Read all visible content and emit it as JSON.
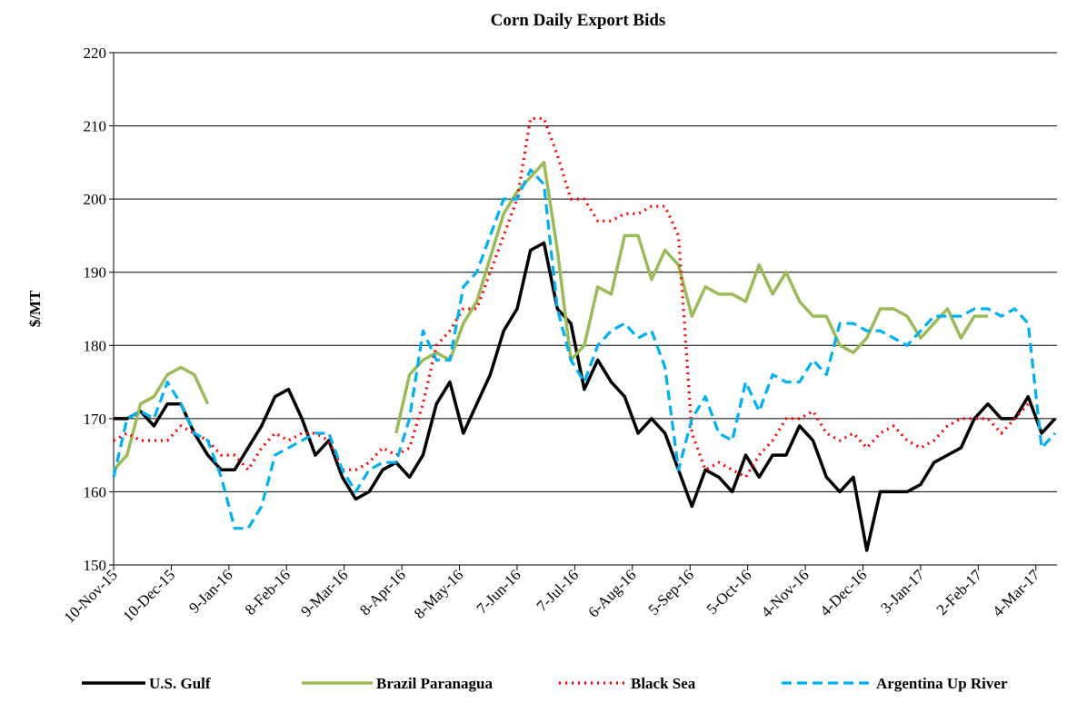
{
  "chart_data": {
    "type": "line",
    "title": "Corn Daily Export Bids",
    "y_label": "$/MT",
    "x": [
      "2015-11-10",
      "2015-11-17",
      "2015-11-24",
      "2015-12-01",
      "2015-12-08",
      "2015-12-15",
      "2015-12-22",
      "2015-12-29",
      "2016-01-05",
      "2016-01-12",
      "2016-01-19",
      "2016-01-26",
      "2016-02-02",
      "2016-02-09",
      "2016-02-16",
      "2016-02-23",
      "2016-03-01",
      "2016-03-08",
      "2016-03-15",
      "2016-03-22",
      "2016-03-29",
      "2016-04-05",
      "2016-04-12",
      "2016-04-19",
      "2016-04-26",
      "2016-05-03",
      "2016-05-10",
      "2016-05-17",
      "2016-05-24",
      "2016-05-31",
      "2016-06-07",
      "2016-06-14",
      "2016-06-21",
      "2016-06-28",
      "2016-07-05",
      "2016-07-12",
      "2016-07-19",
      "2016-07-26",
      "2016-08-02",
      "2016-08-09",
      "2016-08-16",
      "2016-08-23",
      "2016-08-30",
      "2016-09-06",
      "2016-09-13",
      "2016-09-20",
      "2016-09-27",
      "2016-10-04",
      "2016-10-11",
      "2016-10-18",
      "2016-10-25",
      "2016-11-01",
      "2016-11-08",
      "2016-11-15",
      "2016-11-22",
      "2016-11-29",
      "2016-12-06",
      "2016-12-13",
      "2016-12-20",
      "2016-12-27",
      "2017-01-03",
      "2017-01-10",
      "2017-01-17",
      "2017-01-24",
      "2017-01-31",
      "2017-02-07",
      "2017-02-14",
      "2017-02-21",
      "2017-02-28",
      "2017-03-07",
      "2017-03-14"
    ],
    "series": [
      {
        "name": "U.S. Gulf",
        "color": "#000000",
        "dash": "solid",
        "values": [
          170,
          170,
          171,
          169,
          172,
          172,
          168,
          165,
          163,
          163,
          166,
          169,
          173,
          174,
          170,
          165,
          167,
          162,
          159,
          160,
          163,
          164,
          162,
          165,
          172,
          175,
          168,
          172,
          176,
          182,
          185,
          193,
          194,
          185,
          183,
          174,
          178,
          175,
          173,
          168,
          170,
          168,
          163,
          158,
          163,
          162,
          160,
          165,
          162,
          165,
          165,
          169,
          167,
          162,
          160,
          162,
          152,
          160,
          160,
          160,
          161,
          164,
          165,
          166,
          170,
          172,
          170,
          170,
          173,
          168,
          170
        ]
      },
      {
        "name": "Brazil Paranagua",
        "color": "#9bbb59",
        "dash": "solid",
        "values": [
          163,
          165,
          172,
          173,
          176,
          177,
          176,
          172,
          null,
          null,
          null,
          null,
          null,
          null,
          null,
          null,
          null,
          null,
          null,
          null,
          null,
          168,
          176,
          178,
          179,
          178,
          183,
          186,
          192,
          198,
          201,
          203,
          205,
          193,
          178,
          180,
          188,
          187,
          195,
          195,
          189,
          193,
          191,
          184,
          188,
          187,
          187,
          186,
          191,
          187,
          190,
          186,
          184,
          184,
          180,
          179,
          181,
          185,
          185,
          184,
          181,
          183,
          185,
          181,
          184,
          184,
          null,
          null,
          null,
          null,
          null
        ]
      },
      {
        "name": "Black Sea",
        "color": "#ff0000",
        "dash": "dotted",
        "values": [
          167,
          168,
          167,
          167,
          167,
          169,
          168,
          167,
          165,
          165,
          163,
          166,
          168,
          167,
          168,
          168,
          167,
          163,
          163,
          164,
          166,
          165,
          166,
          172,
          180,
          182,
          185,
          185,
          190,
          195,
          200,
          211,
          211,
          206,
          200,
          200,
          197,
          197,
          198,
          198,
          199,
          199,
          195,
          168,
          163,
          164,
          163,
          162,
          165,
          167,
          170,
          170,
          171,
          168,
          167,
          168,
          166,
          168,
          169,
          167,
          166,
          167,
          169,
          170,
          170,
          170,
          168,
          170,
          172,
          null,
          null
        ]
      },
      {
        "name": "Argentina Up River",
        "color": "#00b0f0",
        "dash": "dashed",
        "values": [
          162,
          170,
          171,
          170,
          175,
          172,
          168,
          167,
          162,
          155,
          155,
          158,
          165,
          166,
          167,
          168,
          168,
          163,
          160,
          163,
          164,
          164,
          170,
          182,
          178,
          178,
          188,
          190,
          195,
          200,
          200,
          204,
          202,
          185,
          178,
          175,
          180,
          182,
          183,
          181,
          182,
          177,
          163,
          170,
          173,
          168,
          167,
          175,
          171,
          176,
          175,
          175,
          178,
          176,
          183,
          183,
          182,
          182,
          181,
          180,
          182,
          184,
          184,
          184,
          185,
          185,
          184,
          185,
          183,
          166,
          168
        ]
      }
    ],
    "xlim": [
      "2015-11-10",
      "2017-03-15"
    ],
    "xticks": [
      {
        "value": "2015-11-10",
        "label": "10-Nov-15"
      },
      {
        "value": "2015-12-10",
        "label": "10-Dec-15"
      },
      {
        "value": "2016-01-09",
        "label": "9-Jan-16"
      },
      {
        "value": "2016-02-08",
        "label": "8-Feb-16"
      },
      {
        "value": "2016-03-09",
        "label": "9-Mar-16"
      },
      {
        "value": "2016-04-08",
        "label": "8-Apr-16"
      },
      {
        "value": "2016-05-08",
        "label": "8-May-16"
      },
      {
        "value": "2016-06-07",
        "label": "7-Jun-16"
      },
      {
        "value": "2016-07-07",
        "label": "7-Jul-16"
      },
      {
        "value": "2016-08-06",
        "label": "6-Aug-16"
      },
      {
        "value": "2016-09-05",
        "label": "5-Sep-16"
      },
      {
        "value": "2016-10-05",
        "label": "5-Oct-16"
      },
      {
        "value": "2016-11-04",
        "label": "4-Nov-16"
      },
      {
        "value": "2016-12-04",
        "label": "4-Dec-16"
      },
      {
        "value": "2017-01-03",
        "label": "3-Jan-17"
      },
      {
        "value": "2017-02-02",
        "label": "2-Feb-17"
      },
      {
        "value": "2017-03-04",
        "label": "4-Mar-17"
      }
    ],
    "ylim": [
      150,
      220
    ],
    "yticks": [
      150,
      160,
      170,
      180,
      190,
      200,
      210,
      220
    ],
    "grid": true,
    "legend": "bottom"
  }
}
